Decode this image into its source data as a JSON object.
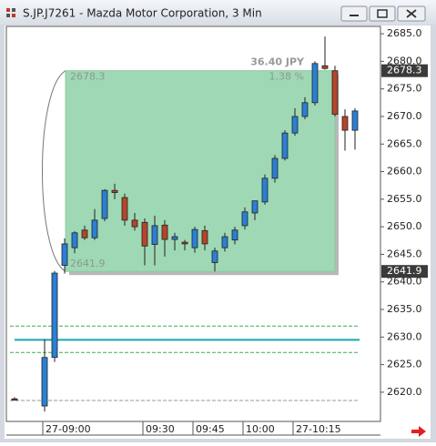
{
  "chart_data": {
    "type": "candlestick",
    "title": "S.JP.J7261 - Mazda Motor Corporation, 3 Min",
    "categories": [
      null,
      null,
      null,
      "27-09:00",
      null,
      null,
      null,
      null,
      null,
      null,
      null,
      null,
      null,
      "09:30",
      null,
      null,
      null,
      null,
      "09:45",
      null,
      null,
      null,
      null,
      "10:00",
      null,
      null,
      null,
      null,
      "27-10:15",
      null,
      null,
      null,
      null,
      null,
      null
    ],
    "open": [
      2618.8,
      null,
      null,
      2617.5,
      2626.3,
      2643,
      2646.2,
      2649.4,
      2648,
      2651.5,
      2656.6,
      2655.3,
      2651.2,
      2650.8,
      2646.8,
      2650.3,
      2647.7,
      2647.2,
      2646.2,
      2649.3,
      2643.5,
      2646.2,
      2647.6,
      2650.2,
      2652.5,
      2654.5,
      2658.8,
      2662.4,
      2667,
      2670,
      2672.5,
      2679.2,
      2678.3,
      2670,
      2667.5
    ],
    "high": [
      2619.1,
      null,
      null,
      2629.6,
      2642,
      2647.9,
      2649.2,
      2650.2,
      2653.2,
      2656.8,
      2657.8,
      2656,
      2652.5,
      2651.5,
      2652,
      2651.2,
      2648.9,
      2647.6,
      2650,
      2650.2,
      2646.2,
      2648.9,
      2650,
      2653.5,
      2654.7,
      2659.5,
      2663,
      2667.5,
      2671.5,
      2673.5,
      2680,
      2684.5,
      2679.2,
      2671.3,
      2671.5
    ],
    "low": [
      2618.5,
      null,
      null,
      2616.5,
      2625.5,
      2641.5,
      2645.2,
      2647.6,
      2647.6,
      2651,
      2655,
      2650.2,
      2649.3,
      2643,
      2643,
      2644.6,
      2645.7,
      2645.7,
      2645.3,
      2645.7,
      2641.9,
      2645.5,
      2646.8,
      2649.5,
      2651.2,
      2654,
      2658,
      2662,
      2666.5,
      2669.5,
      2672,
      2678.5,
      2670,
      2663.8,
      2664
    ],
    "close": [
      2618.7,
      null,
      null,
      2626.3,
      2641.6,
      2646.9,
      2648.9,
      2648,
      2651.2,
      2656.6,
      2656.2,
      2651.2,
      2650,
      2646.5,
      2650.2,
      2647.7,
      2648.2,
      2646.9,
      2649.5,
      2646.9,
      2645.6,
      2648.2,
      2649.4,
      2652.7,
      2654.7,
      2658.8,
      2662.4,
      2667,
      2670,
      2672.5,
      2679.6,
      2678.7,
      2670.4,
      2667.5,
      2671
    ],
    "up_color": "#2b7fd4",
    "down_color": "#b5452a",
    "ylim": [
      2614.7,
      2686.5
    ],
    "yticks": [
      {
        "value": 2620,
        "label": "2620.0"
      },
      {
        "value": 2625,
        "label": "2625.0"
      },
      {
        "value": 2630,
        "label": "2630.0"
      },
      {
        "value": 2635,
        "label": "2635.0"
      },
      {
        "value": 2640,
        "label": "2640.0"
      },
      {
        "value": 2645,
        "label": "2645.0"
      },
      {
        "value": 2650,
        "label": "2650.0"
      },
      {
        "value": 2655,
        "label": "2655.0"
      },
      {
        "value": 2660,
        "label": "2660.0"
      },
      {
        "value": 2665,
        "label": "2665.0"
      },
      {
        "value": 2670,
        "label": "2670.0"
      },
      {
        "value": 2675,
        "label": "2675.0"
      },
      {
        "value": 2680,
        "label": "2680.0"
      },
      {
        "value": 2685,
        "label": "2685.0"
      }
    ],
    "grid": false,
    "range_box": {
      "upper": {
        "value": 2678.3,
        "label": "2678.3"
      },
      "lower": {
        "value": 2641.9,
        "label": "2641.9"
      },
      "change": "36.40 JPY",
      "percent": "1.38 %",
      "color": "#9fd8b4"
    },
    "levels": [
      {
        "value": 2632,
        "color": "#3cb043",
        "dashed": true
      },
      {
        "value": 2629.5,
        "color": "#17a7b5",
        "dashed": false
      },
      {
        "value": 2627.2,
        "color": "#3cb043",
        "dashed": true
      },
      {
        "value": 2618.5,
        "color": "#999999",
        "dashed": true
      }
    ]
  }
}
